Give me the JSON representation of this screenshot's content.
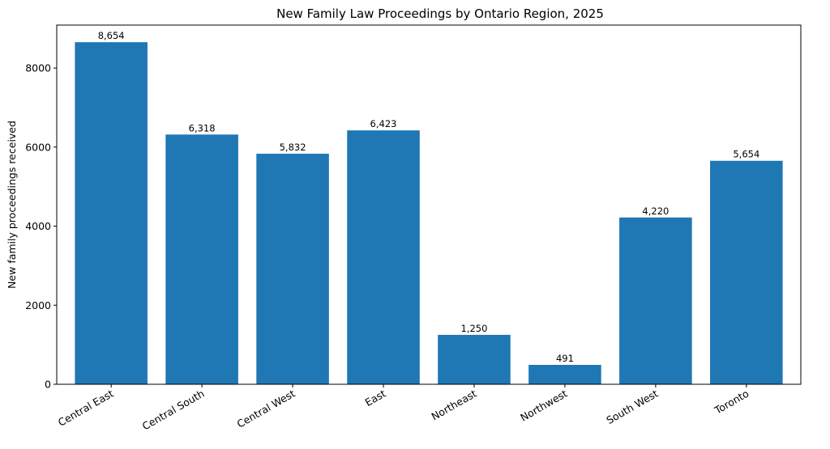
{
  "chart_data": {
    "type": "bar",
    "title": "New Family Law Proceedings by Ontario Region, 2025",
    "xlabel": "",
    "ylabel": "New family proceedings received",
    "categories": [
      "Central East",
      "Central South",
      "Central West",
      "East",
      "Northeast",
      "Northwest",
      "South West",
      "Toronto"
    ],
    "values": [
      8654,
      6318,
      5832,
      6423,
      1250,
      491,
      4220,
      5654
    ],
    "value_labels": [
      "8,654",
      "6,318",
      "5,832",
      "6,423",
      "1,250",
      "491",
      "4,220",
      "5,654"
    ],
    "ylim": [
      0,
      9087
    ],
    "yticks": [
      0,
      2000,
      4000,
      6000,
      8000
    ],
    "ytick_labels": [
      "0",
      "2000",
      "4000",
      "6000",
      "8000"
    ],
    "bar_color": "#1f77b4",
    "grid": false,
    "legend": "none"
  }
}
